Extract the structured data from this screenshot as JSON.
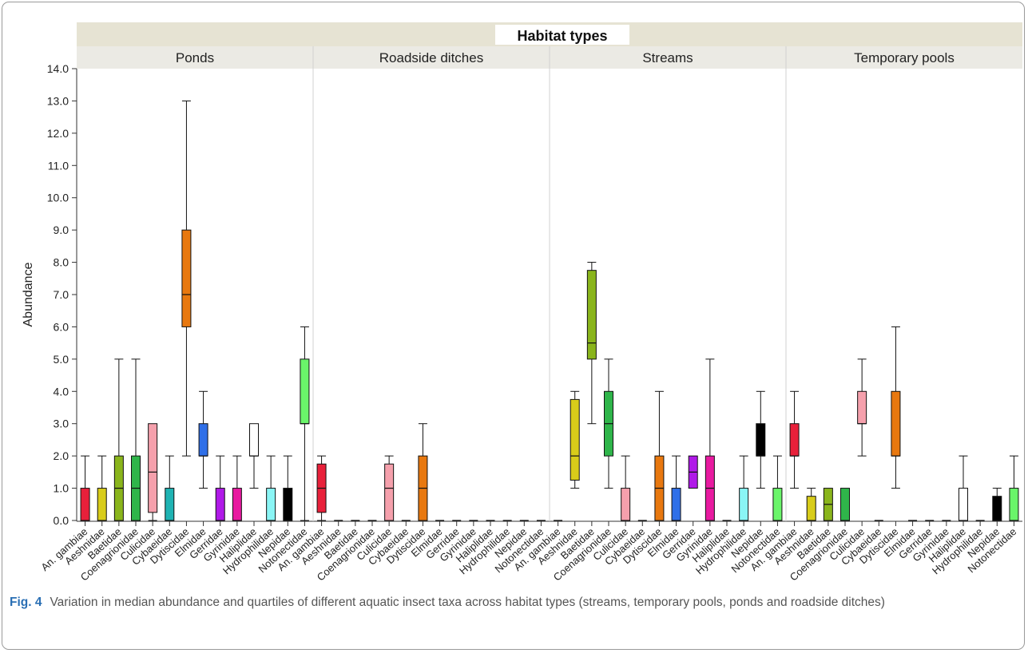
{
  "caption": {
    "label": "Fig. 4",
    "text": "Variation in median abundance and quartiles of different aquatic insect taxa across habitat types (streams, temporary pools, ponds and roadside ditches)"
  },
  "chart_data": {
    "type": "box",
    "title": "Habitat types",
    "ylabel": "Abundance",
    "xlabel": "",
    "ylim": [
      0,
      14
    ],
    "yticks": [
      "0.0",
      "1.0",
      "2.0",
      "3.0",
      "4.0",
      "5.0",
      "6.0",
      "7.0",
      "8.0",
      "9.0",
      "10.0",
      "11.0",
      "12.0",
      "13.0",
      "14.0"
    ],
    "grid": false,
    "colors": {
      "An. gambiae": "#e8203a",
      "Aeshnidae": "#d8cc1a",
      "Baetidae": "#8ab51c",
      "Coenagrionidae": "#2fb54a",
      "Culicidae": "#f5a0ac",
      "Cybaeidae": "#1fb3b3",
      "Dytiscidae": "#e8780f",
      "Elmidae": "#2f6fe8",
      "Gerridae": "#b01ae8",
      "Gyrinidae": "#e81aa0",
      "Haliplidae": "#ffffff",
      "Hydrophilidae": "#8af5f5",
      "Nepidae": "#000000",
      "Notonectidae": "#6af56a"
    },
    "panels": [
      {
        "name": "Ponds",
        "categories": [
          "An. gambiae",
          "Aeshnidae",
          "Baetidae",
          "Coenagrionidae",
          "Culicidae",
          "Cybaeidae",
          "Dytiscidae",
          "Elmidae",
          "Gerridae",
          "Gyrinidae",
          "Haliplidae",
          "Hydrophilidae",
          "Nepidae",
          "Notonectidae"
        ],
        "boxes": [
          {
            "min": 0,
            "q1": 0,
            "median": 0,
            "q3": 1,
            "max": 2
          },
          {
            "min": 0,
            "q1": 0,
            "median": 0,
            "q3": 1,
            "max": 2
          },
          {
            "min": 0,
            "q1": 0,
            "median": 1,
            "q3": 2,
            "max": 5
          },
          {
            "min": 0,
            "q1": 0,
            "median": 1,
            "q3": 2,
            "max": 5
          },
          {
            "min": 0,
            "q1": 0.25,
            "median": 1.5,
            "q3": 3,
            "max": 3
          },
          {
            "min": 0,
            "q1": 0,
            "median": 0,
            "q3": 1,
            "max": 2
          },
          {
            "min": 2,
            "q1": 6,
            "median": 7,
            "q3": 9,
            "max": 13
          },
          {
            "min": 1,
            "q1": 2,
            "median": 2,
            "q3": 3,
            "max": 4
          },
          {
            "min": 0,
            "q1": 0,
            "median": 0,
            "q3": 1,
            "max": 2
          },
          {
            "min": 0,
            "q1": 0,
            "median": 0,
            "q3": 1,
            "max": 2
          },
          {
            "min": 1,
            "q1": 2,
            "median": 2,
            "q3": 3,
            "max": 3
          },
          {
            "min": 0,
            "q1": 0,
            "median": 0,
            "q3": 1,
            "max": 2
          },
          {
            "min": 0,
            "q1": 0,
            "median": 0,
            "q3": 1,
            "max": 2
          },
          {
            "min": 0,
            "q1": 3,
            "median": 3,
            "q3": 5,
            "max": 6
          }
        ]
      },
      {
        "name": "Roadside ditches",
        "categories": [
          "An. gambiae",
          "Aeshnidae",
          "Baetidae",
          "Coenagrionidae",
          "Culicidae",
          "Cybaeidae",
          "Dytiscidae",
          "Elmidae",
          "Gerridae",
          "Gyrinidae",
          "Haliplidae",
          "Hydrophilidae",
          "Nepidae",
          "Notonectidae"
        ],
        "boxes": [
          {
            "min": 0,
            "q1": 0.25,
            "median": 1,
            "q3": 1.75,
            "max": 2
          },
          {
            "min": 0,
            "q1": 0,
            "median": 0,
            "q3": 0,
            "max": 0
          },
          {
            "min": 0,
            "q1": 0,
            "median": 0,
            "q3": 0,
            "max": 0
          },
          {
            "min": 0,
            "q1": 0,
            "median": 0,
            "q3": 0,
            "max": 0
          },
          {
            "min": 0,
            "q1": 0,
            "median": 1,
            "q3": 1.75,
            "max": 2
          },
          {
            "min": 0,
            "q1": 0,
            "median": 0,
            "q3": 0,
            "max": 0
          },
          {
            "min": 0,
            "q1": 0,
            "median": 1,
            "q3": 2,
            "max": 3
          },
          {
            "min": 0,
            "q1": 0,
            "median": 0,
            "q3": 0,
            "max": 0
          },
          {
            "min": 0,
            "q1": 0,
            "median": 0,
            "q3": 0,
            "max": 0
          },
          {
            "min": 0,
            "q1": 0,
            "median": 0,
            "q3": 0,
            "max": 0
          },
          {
            "min": 0,
            "q1": 0,
            "median": 0,
            "q3": 0,
            "max": 0
          },
          {
            "min": 0,
            "q1": 0,
            "median": 0,
            "q3": 0,
            "max": 0
          },
          {
            "min": 0,
            "q1": 0,
            "median": 0,
            "q3": 0,
            "max": 0
          },
          {
            "min": 0,
            "q1": 0,
            "median": 0,
            "q3": 0,
            "max": 0
          }
        ]
      },
      {
        "name": "Streams",
        "categories": [
          "An. gambiae",
          "Aeshnidae",
          "Baetidae",
          "Coenagrionidae",
          "Culicidae",
          "Cybaeidae",
          "Dytiscidae",
          "Elmidae",
          "Gerridae",
          "Gyrinidae",
          "Haliplidae",
          "Hydrophilidae",
          "Nepidae",
          "Notonectidae"
        ],
        "boxes": [
          {
            "min": 0,
            "q1": 0,
            "median": 0,
            "q3": 0,
            "max": 0
          },
          {
            "min": 1,
            "q1": 1.25,
            "median": 2,
            "q3": 3.75,
            "max": 4
          },
          {
            "min": 3,
            "q1": 5,
            "median": 5.5,
            "q3": 7.75,
            "max": 8
          },
          {
            "min": 1,
            "q1": 2,
            "median": 3,
            "q3": 4,
            "max": 5
          },
          {
            "min": 0,
            "q1": 0,
            "median": 0,
            "q3": 1,
            "max": 2
          },
          {
            "min": 0,
            "q1": 0,
            "median": 0,
            "q3": 0,
            "max": 0
          },
          {
            "min": 0,
            "q1": 0,
            "median": 1,
            "q3": 2,
            "max": 4
          },
          {
            "min": 0,
            "q1": 0,
            "median": 0,
            "q3": 1,
            "max": 2
          },
          {
            "min": 1,
            "q1": 1,
            "median": 1.5,
            "q3": 2,
            "max": 2
          },
          {
            "min": 0,
            "q1": 0,
            "median": 1,
            "q3": 2,
            "max": 5
          },
          {
            "min": 0,
            "q1": 0,
            "median": 0,
            "q3": 0,
            "max": 0
          },
          {
            "min": 0,
            "q1": 0,
            "median": 0,
            "q3": 1,
            "max": 2
          },
          {
            "min": 1,
            "q1": 2,
            "median": 2,
            "q3": 3,
            "max": 4
          },
          {
            "min": 0,
            "q1": 0,
            "median": 0,
            "q3": 1,
            "max": 2
          }
        ]
      },
      {
        "name": "Temporary pools",
        "categories": [
          "An. gambiae",
          "Aeshnidae",
          "Baetidae",
          "Coenagrionidae",
          "Culicidae",
          "Cybaeidae",
          "Dytiscidae",
          "Elmidae",
          "Gerridae",
          "Gyrinidae",
          "Haliplidae",
          "Hydrophilidae",
          "Nepidae",
          "Notonectidae"
        ],
        "boxes": [
          {
            "min": 1,
            "q1": 2,
            "median": 2,
            "q3": 3,
            "max": 4
          },
          {
            "min": 0,
            "q1": 0,
            "median": 0,
            "q3": 0.75,
            "max": 1
          },
          {
            "min": 0,
            "q1": 0,
            "median": 0.5,
            "q3": 1,
            "max": 1
          },
          {
            "min": 0,
            "q1": 0,
            "median": 0,
            "q3": 1,
            "max": 1
          },
          {
            "min": 2,
            "q1": 3,
            "median": 3,
            "q3": 4,
            "max": 5
          },
          {
            "min": 0,
            "q1": 0,
            "median": 0,
            "q3": 0,
            "max": 0
          },
          {
            "min": 1,
            "q1": 2,
            "median": 2,
            "q3": 4,
            "max": 6
          },
          {
            "min": 0,
            "q1": 0,
            "median": 0,
            "q3": 0,
            "max": 0
          },
          {
            "min": 0,
            "q1": 0,
            "median": 0,
            "q3": 0,
            "max": 0
          },
          {
            "min": 0,
            "q1": 0,
            "median": 0,
            "q3": 0,
            "max": 0
          },
          {
            "min": 0,
            "q1": 0,
            "median": 0,
            "q3": 1,
            "max": 2
          },
          {
            "min": 0,
            "q1": 0,
            "median": 0,
            "q3": 0,
            "max": 0
          },
          {
            "min": 0,
            "q1": 0,
            "median": 0,
            "q3": 0.75,
            "max": 1
          },
          {
            "min": 0,
            "q1": 0,
            "median": 0,
            "q3": 1,
            "max": 2
          }
        ]
      }
    ]
  }
}
